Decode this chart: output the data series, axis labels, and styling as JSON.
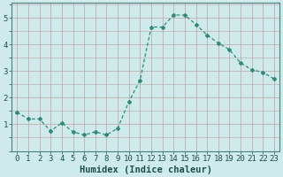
{
  "x": [
    0,
    1,
    2,
    3,
    4,
    5,
    6,
    7,
    8,
    9,
    10,
    11,
    12,
    13,
    14,
    15,
    16,
    17,
    18,
    19,
    20,
    21,
    22,
    23
  ],
  "y": [
    1.45,
    1.2,
    1.2,
    0.75,
    1.05,
    0.72,
    0.6,
    0.72,
    0.6,
    0.85,
    1.85,
    2.65,
    4.65,
    4.65,
    5.1,
    5.1,
    4.75,
    4.35,
    4.05,
    3.8,
    3.3,
    3.05,
    2.95,
    2.7
  ],
  "line_color": "#2d8b7a",
  "marker": "D",
  "marker_size": 2.0,
  "linewidth": 0.9,
  "bg_color": "#ceeaea",
  "grid_color": "#c4a0a0",
  "xlabel": "Humidex (Indice chaleur)",
  "xlabel_fontsize": 7.5,
  "xlabel_color": "#1a5050",
  "ylabel_ticks": [
    1,
    2,
    3,
    4,
    5
  ],
  "xlim": [
    -0.5,
    23.5
  ],
  "ylim": [
    0.0,
    5.55
  ],
  "tick_fontsize": 6.5,
  "tick_color": "#1a5050",
  "spine_color": "#4a8080"
}
